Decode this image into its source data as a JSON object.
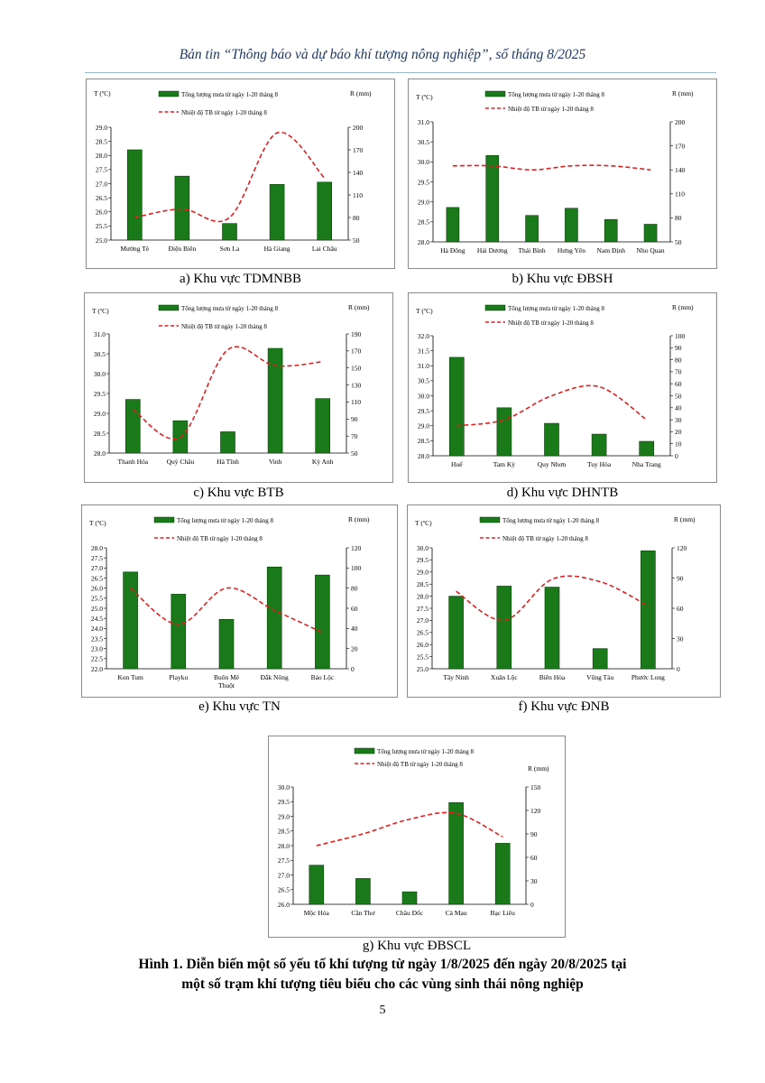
{
  "header": {
    "text": "Bản tin “Thông báo và dự báo khí tượng nông nghiệp”, số tháng 8/2025"
  },
  "legend": {
    "bar_label": "Tổng lượng mưa từ ngày 1-20 tháng 8",
    "line_label": "Nhiệt độ TB từ ngày 1-20 tháng 8"
  },
  "colors": {
    "bar": "#1a7a1a",
    "bar_stroke": "#0b3d0b",
    "line": "#e02020",
    "header": "#1f3864"
  },
  "figure_title": {
    "line1": "Hình 1. Diễn biến một số yếu tố khí tượng từ ngày 1/8/2025 đến ngày 20/8/2025 tại",
    "line2": "một số trạm khí tượng tiêu biểu cho các vùng sinh thái nông nghiệp"
  },
  "page_number": "5",
  "chart_data": [
    {
      "type": "bar+line",
      "caption": "a)  Khu vực TDMNBB",
      "left_axis_label": "T (ºC)",
      "right_axis_label": "R (mm)",
      "categories": [
        "Mường Tè",
        "Điện Biên",
        "Sơn La",
        "Hà Giang",
        "Lai Châu"
      ],
      "series": [
        {
          "name": "Tổng lượng mưa từ ngày 1-20 tháng 8",
          "kind": "bar",
          "axis": "right",
          "values": [
            170,
            135,
            72,
            124,
            127
          ]
        },
        {
          "name": "Nhiệt độ TB từ ngày 1-20 tháng 8",
          "kind": "line",
          "axis": "left",
          "values": [
            25.8,
            26.1,
            25.8,
            28.8,
            27.2
          ]
        }
      ],
      "left_ylim": [
        25.0,
        29.0
      ],
      "left_ticks": [
        "25.0",
        "25.5",
        "26.0",
        "26.5",
        "27.0",
        "27.5",
        "28.0",
        "28.5",
        "29.0"
      ],
      "right_ylim": [
        50,
        200
      ],
      "right_ticks": [
        "50",
        "80",
        "110",
        "140",
        "170",
        "200"
      ]
    },
    {
      "type": "bar+line",
      "caption": "b)  Khu vực ĐBSH",
      "left_axis_label": "T (ºC)",
      "right_axis_label": "R (mm)",
      "categories": [
        "Hà Đông",
        "Hải Dương",
        "Thái Bình",
        "Hưng Yên",
        "Nam Định",
        "Nho Quan"
      ],
      "series": [
        {
          "name": "Tổng lượng mưa từ ngày 1-20 tháng 8",
          "kind": "bar",
          "axis": "right",
          "values": [
            93,
            158,
            83,
            92,
            78,
            72
          ]
        },
        {
          "name": "Nhiệt độ TB từ ngày 1-20 tháng 8",
          "kind": "line",
          "axis": "left",
          "values": [
            29.9,
            29.9,
            29.8,
            29.9,
            29.9,
            29.8
          ]
        }
      ],
      "left_ylim": [
        28.0,
        31.0
      ],
      "left_ticks": [
        "28.0",
        "28.5",
        "29.0",
        "29.5",
        "30.0",
        "30.5",
        "31.0"
      ],
      "right_ylim": [
        50,
        200
      ],
      "right_ticks": [
        "50",
        "80",
        "110",
        "140",
        "170",
        "200"
      ]
    },
    {
      "type": "bar+line",
      "caption": "c)  Khu vực BTB",
      "left_axis_label": "T (ºC)",
      "right_axis_label": "R (mm)",
      "categories": [
        "Thanh Hóa",
        "Quỳ Châu",
        "Hà Tĩnh",
        "Vinh",
        "Kỳ Anh"
      ],
      "series": [
        {
          "name": "Tổng lượng mưa từ ngày 1-20 tháng 8",
          "kind": "bar",
          "axis": "right",
          "values": [
            113,
            88,
            75,
            173,
            114
          ]
        },
        {
          "name": "Nhiệt độ TB từ ngày 1-20 tháng 8",
          "kind": "line",
          "axis": "left",
          "values": [
            29.1,
            28.4,
            30.6,
            30.2,
            30.3
          ]
        }
      ],
      "left_ylim": [
        28.0,
        31.0
      ],
      "left_ticks": [
        "28.0",
        "28.5",
        "29.0",
        "29.5",
        "30.0",
        "30.5",
        "31.0"
      ],
      "right_ylim": [
        50,
        190
      ],
      "right_ticks": [
        "50",
        "70",
        "90",
        "110",
        "130",
        "150",
        "170",
        "190"
      ]
    },
    {
      "type": "bar+line",
      "caption": "d)  Khu vực DHNTB",
      "left_axis_label": "T (ºC)",
      "right_axis_label": "R (mm)",
      "categories": [
        "Huế",
        "Tam Kỳ",
        "Quy Nhơn",
        "Tuy Hòa",
        "Nha Trang"
      ],
      "series": [
        {
          "name": "Tổng lượng mưa từ ngày 1-20 tháng 8",
          "kind": "bar",
          "axis": "right",
          "values": [
            82,
            40,
            27,
            18,
            12
          ]
        },
        {
          "name": "Nhiệt độ TB từ ngày 1-20 tháng 8",
          "kind": "line",
          "axis": "left",
          "values": [
            29.0,
            29.2,
            30.0,
            30.3,
            29.2
          ]
        }
      ],
      "left_ylim": [
        28.0,
        32.0
      ],
      "left_ticks": [
        "28.0",
        "28.5",
        "29.0",
        "29.5",
        "30.0",
        "30.5",
        "31.0",
        "31.5",
        "32.0"
      ],
      "right_ylim": [
        0,
        100
      ],
      "right_ticks": [
        "0",
        "10",
        "20",
        "30",
        "40",
        "50",
        "60",
        "70",
        "80",
        "90",
        "100"
      ]
    },
    {
      "type": "bar+line",
      "caption": "e)  Khu vực TN",
      "left_axis_label": "T (ºC)",
      "right_axis_label": "R (mm)",
      "categories": [
        "Kon Tum",
        "Playku",
        "Buôn Mê Thuột",
        "Đắk Nông",
        "Bảo Lộc"
      ],
      "series": [
        {
          "name": "Tổng lượng mưa từ ngày 1-20 tháng 8",
          "kind": "bar",
          "axis": "right",
          "values": [
            96,
            74,
            49,
            101,
            93
          ]
        },
        {
          "name": "Nhiệt độ TB từ ngày 1-20 tháng 8",
          "kind": "line",
          "axis": "left",
          "values": [
            26.0,
            24.2,
            26.0,
            24.9,
            23.8
          ]
        }
      ],
      "left_ylim": [
        22.0,
        28.0
      ],
      "left_ticks": [
        "22.0",
        "22.5",
        "23.0",
        "23.5",
        "24.0",
        "24.5",
        "25.0",
        "25.5",
        "26.0",
        "26.5",
        "27.0",
        "27.5",
        "28.0"
      ],
      "right_ylim": [
        0,
        120
      ],
      "right_ticks": [
        "0",
        "20",
        "40",
        "60",
        "80",
        "100",
        "120"
      ]
    },
    {
      "type": "bar+line",
      "caption": "f)  Khu vực ĐNB",
      "left_axis_label": "T (ºC)",
      "right_axis_label": "R (mm)",
      "categories": [
        "Tây Ninh",
        "Xuân Lộc",
        "Biên Hòa",
        "Vũng Tàu",
        "Phước Long"
      ],
      "series": [
        {
          "name": "Tổng lượng mưa từ ngày 1-20 tháng 8",
          "kind": "bar",
          "axis": "right",
          "values": [
            72,
            82,
            81,
            20,
            117
          ]
        },
        {
          "name": "Nhiệt độ TB từ ngày 1-20 tháng 8",
          "kind": "line",
          "axis": "left",
          "values": [
            28.2,
            27.0,
            28.7,
            28.6,
            27.6
          ]
        }
      ],
      "left_ylim": [
        25.0,
        30.0
      ],
      "left_ticks": [
        "25.0",
        "25.5",
        "26.0",
        "26.5",
        "27.0",
        "27.5",
        "28.0",
        "28.5",
        "29.0",
        "29.5",
        "30.0"
      ],
      "right_ylim": [
        0,
        120
      ],
      "right_ticks": [
        "0",
        "30",
        "60",
        "90",
        "120"
      ]
    },
    {
      "type": "bar+line",
      "caption": "g)  Khu vực ĐBSCL",
      "left_axis_label": "",
      "right_axis_label": "R (mm)",
      "categories": [
        "Mộc Hóa",
        "Cần Thơ",
        "Châu Đốc",
        "Cà Mau",
        "Bạc Liêu"
      ],
      "series": [
        {
          "name": "Tổng lượng mưa từ ngày 1-20 tháng 8",
          "kind": "bar",
          "axis": "right",
          "values": [
            50,
            33,
            16,
            130,
            78
          ]
        },
        {
          "name": "Nhiệt độ TB từ ngày 1-20 tháng 8",
          "kind": "line",
          "axis": "left",
          "values": [
            28.0,
            28.4,
            28.9,
            29.1,
            28.3
          ]
        }
      ],
      "left_ylim": [
        26.0,
        30.0
      ],
      "left_ticks": [
        "26.0",
        "26.5",
        "27.0",
        "27.5",
        "28.0",
        "28.5",
        "29.0",
        "29.5",
        "30.0"
      ],
      "right_ylim": [
        0,
        150
      ],
      "right_ticks": [
        "0",
        "30",
        "60",
        "90",
        "120",
        "150"
      ]
    }
  ]
}
